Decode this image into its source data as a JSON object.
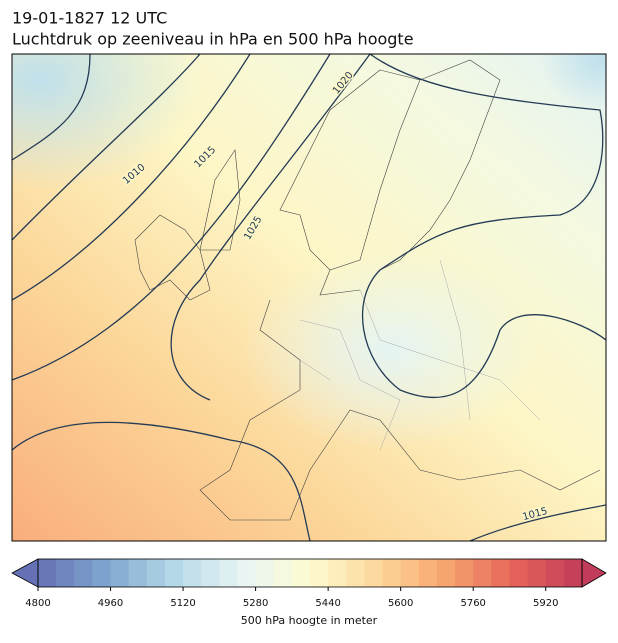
{
  "header": {
    "title": "19-01-1827 12 UTC",
    "subtitle": "Luchtdruk op zeeniveau in hPa en 500 hPa hoogte"
  },
  "contour_labels": [
    "1010",
    "1015",
    "1020",
    "1025",
    "1015"
  ],
  "colorbar": {
    "label": "500 hPa hoogte in meter",
    "lim": [
      4800,
      6000
    ],
    "step": 40,
    "ticks": [
      4800,
      4960,
      5120,
      5280,
      5440,
      5600,
      5760,
      5920
    ],
    "colors": [
      "#6570b5",
      "#7ea6cf",
      "#b5d8e8",
      "#e8f5f5",
      "#fdfbd0",
      "#fcd79a",
      "#f7a56f",
      "#e5645a",
      "#c03c5a"
    ]
  }
}
